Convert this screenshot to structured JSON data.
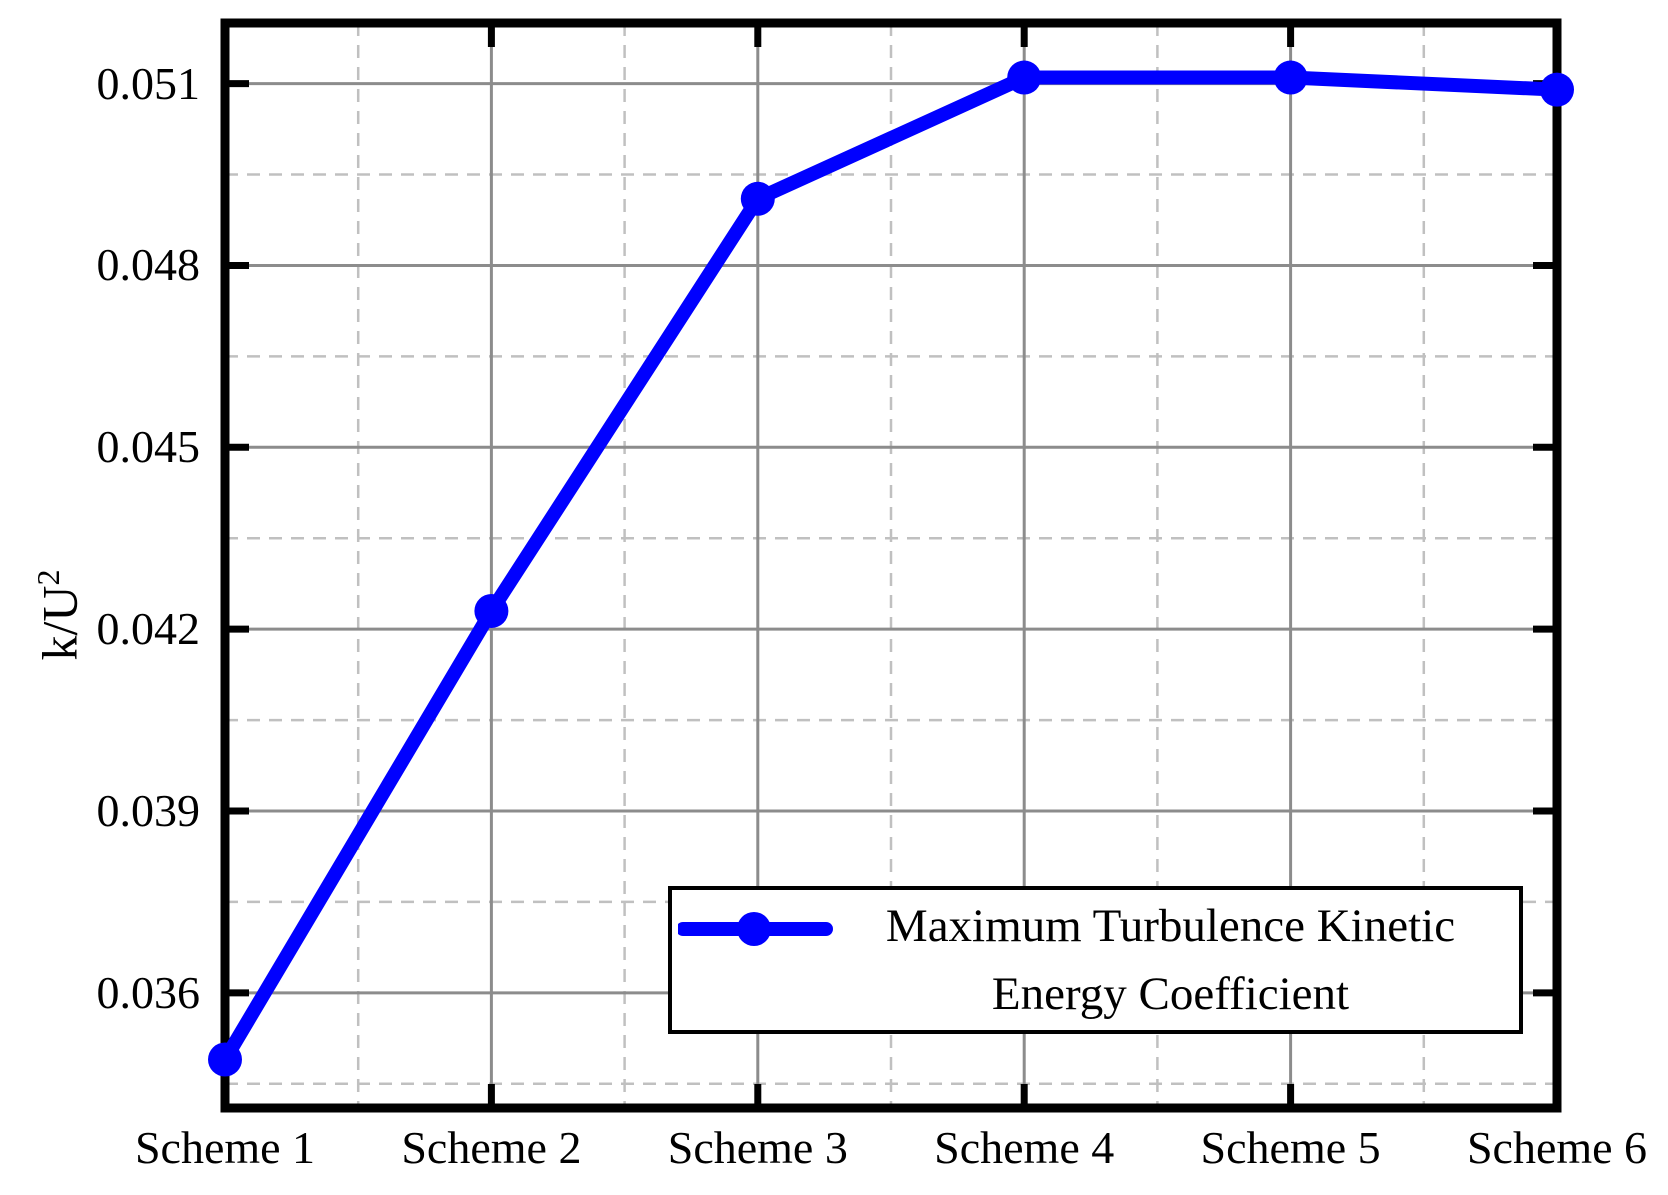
{
  "chart_data": {
    "type": "line",
    "title": "",
    "categories": [
      "Scheme 1",
      "Scheme 2",
      "Scheme 3",
      "Scheme 4",
      "Scheme 5",
      "Scheme 6"
    ],
    "series": [
      {
        "name": "Maximum Turbulence Kinetic Energy Coefficient",
        "color": "#0000FF",
        "values": [
          0.0349,
          0.0423,
          0.0491,
          0.0511,
          0.0511,
          0.0509
        ]
      }
    ],
    "xlabel": "",
    "ylabel": "k/U^2",
    "ylabel_parts": {
      "base": "k/U",
      "sup": "2"
    },
    "yticks": [
      0.036,
      0.039,
      0.042,
      0.045,
      0.048,
      0.051
    ],
    "ytick_labels": [
      "0.036",
      "0.039",
      "0.042",
      "0.045",
      "0.048",
      "0.051"
    ],
    "ylim": [
      0.0341,
      0.052
    ],
    "minor_y_interval": 0.0015,
    "grid": {
      "major": true,
      "minor": true,
      "major_color": "#8C8C8C",
      "minor_color": "#C0C0C0",
      "minor_style": "dashed"
    },
    "axis_color": "#000000",
    "background": "#FFFFFF",
    "legend": {
      "position": "lower-right",
      "lines": [
        "Maximum Turbulence Kinetic",
        "Energy Coefficient"
      ]
    }
  }
}
